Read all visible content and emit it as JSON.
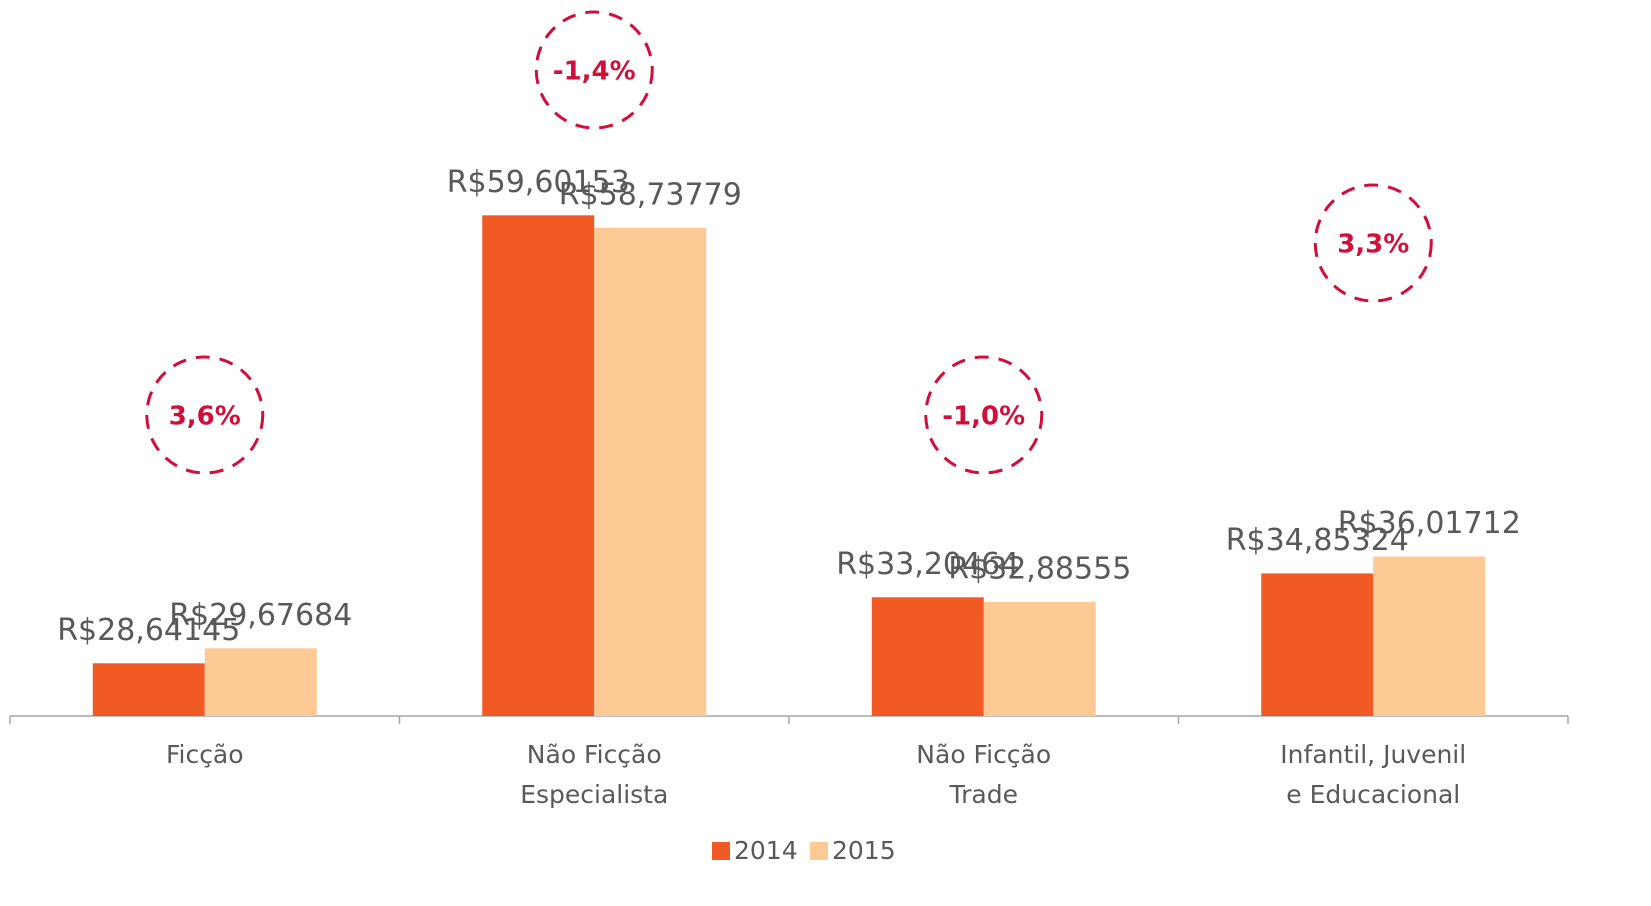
{
  "chart_data": {
    "type": "bar",
    "categories": [
      "Ficção",
      "Não Ficção\nEspecialista",
      "Não Ficção\nTrade",
      "Infantil, Juvenil\ne Educacional"
    ],
    "series": [
      {
        "name": "2014",
        "color": "#f15a24",
        "values": [
          28.64145,
          59.60153,
          33.20464,
          34.85324
        ],
        "value_labels": [
          "R$28,64145",
          "R$59,60153",
          "R$33,20464",
          "R$34,85324"
        ]
      },
      {
        "name": "2015",
        "color": "#fdca96",
        "values": [
          29.67684,
          58.73779,
          32.88555,
          36.01712
        ],
        "value_labels": [
          "R$29,67684",
          "R$58,73779",
          "R$32,88555",
          "R$36,01712"
        ]
      }
    ],
    "annotations": [
      "3,6%",
      "-1,4%",
      "-1,0%",
      "3,3%"
    ],
    "annotation_color": "#d0103a",
    "ylim": [
      25,
      75
    ],
    "legend": "bottom"
  }
}
